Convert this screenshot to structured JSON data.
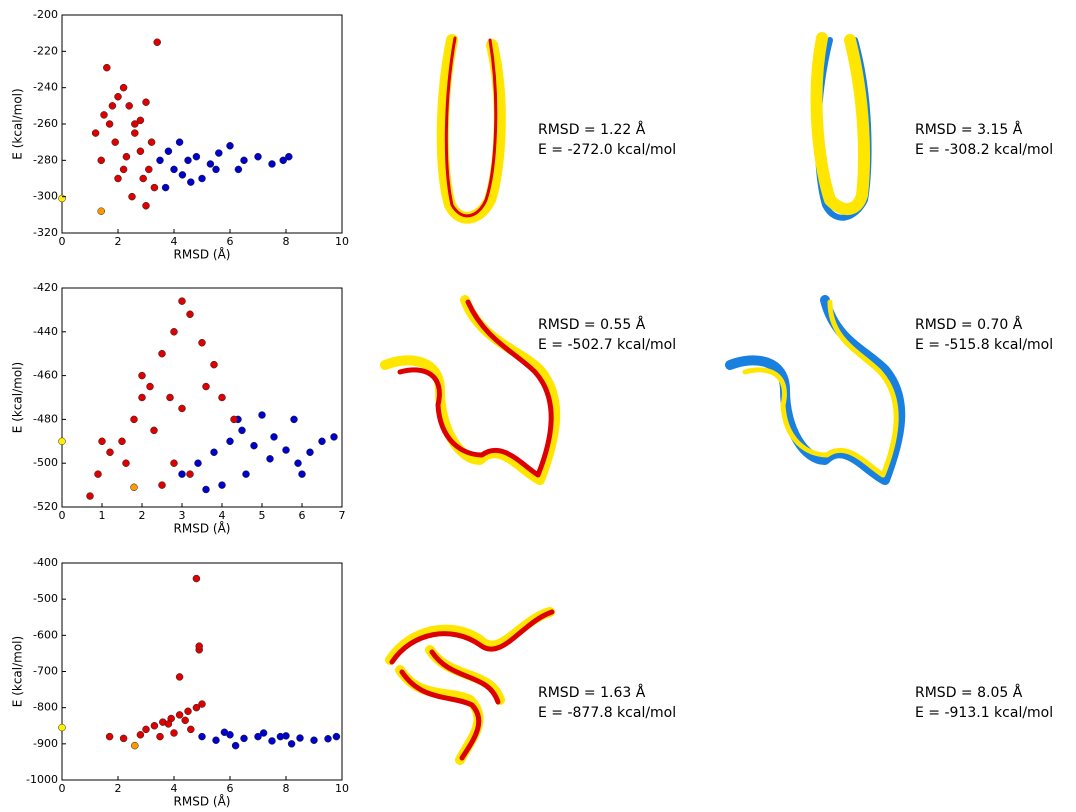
{
  "chart_data": [
    {
      "type": "scatter",
      "xlabel": "RMSD (Å)",
      "ylabel": "E (kcal/mol)",
      "xlim": [
        0,
        10
      ],
      "ylim": [
        -320,
        -200
      ],
      "xticks": [
        0,
        2,
        4,
        6,
        8,
        10
      ],
      "yticks": [
        -320,
        -300,
        -280,
        -260,
        -240,
        -220,
        -200
      ],
      "series": [
        {
          "color": "#0000cc",
          "x": [
            3.5,
            3.8,
            4.0,
            4.2,
            4.5,
            4.8,
            5.0,
            5.3,
            5.6,
            6.0,
            6.3,
            6.5,
            7.0,
            7.5,
            7.9,
            8.1,
            3.7,
            4.3,
            5.5,
            4.6
          ],
          "values": [
            -280,
            -275,
            -285,
            -270,
            -280,
            -278,
            -290,
            -282,
            -276,
            -272,
            -285,
            -280,
            -278,
            -282,
            -280,
            -278,
            -295,
            -288,
            -285,
            -292
          ]
        },
        {
          "color": "#dd0000",
          "x": [
            1.2,
            1.5,
            1.8,
            2.0,
            2.2,
            2.4,
            2.6,
            2.8,
            3.0,
            3.2,
            1.6,
            3.4,
            2.0,
            2.5,
            3.0,
            1.4,
            2.2,
            2.8,
            3.3,
            1.9,
            2.6,
            3.1,
            1.7,
            2.3,
            2.9
          ],
          "values": [
            -265,
            -255,
            -250,
            -245,
            -240,
            -250,
            -260,
            -258,
            -248,
            -270,
            -229,
            -215,
            -290,
            -300,
            -305,
            -280,
            -285,
            -275,
            -295,
            -270,
            -265,
            -285,
            -260,
            -278,
            -290
          ]
        },
        {
          "color": "#ffee00",
          "x": [
            0
          ],
          "values": [
            -301
          ]
        },
        {
          "color": "#ff9900",
          "x": [
            1.4
          ],
          "values": [
            -308
          ]
        }
      ]
    },
    {
      "type": "scatter",
      "xlabel": "RMSD (Å)",
      "ylabel": "E (kcal/mol)",
      "xlim": [
        0,
        7
      ],
      "ylim": [
        -520,
        -420
      ],
      "xticks": [
        0,
        1,
        2,
        3,
        4,
        5,
        6,
        7
      ],
      "yticks": [
        -520,
        -500,
        -480,
        -460,
        -440,
        -420
      ],
      "series": [
        {
          "color": "#0000cc",
          "x": [
            3.0,
            3.4,
            3.8,
            4.2,
            4.5,
            4.8,
            5.0,
            5.3,
            5.6,
            5.9,
            6.2,
            6.5,
            6.8,
            4.0,
            4.6,
            5.2,
            3.6,
            4.4,
            5.8,
            6.0
          ],
          "values": [
            -505,
            -500,
            -495,
            -490,
            -485,
            -492,
            -478,
            -488,
            -494,
            -500,
            -495,
            -490,
            -488,
            -510,
            -505,
            -498,
            -512,
            -480,
            -480,
            -505
          ]
        },
        {
          "color": "#dd0000",
          "x": [
            0.7,
            0.9,
            1.2,
            1.5,
            1.8,
            2.0,
            2.2,
            2.5,
            2.8,
            3.0,
            3.2,
            3.5,
            3.8,
            4.0,
            4.3,
            2.8,
            3.2,
            2.5,
            1.0,
            1.6,
            2.3,
            3.0,
            3.6,
            2.0,
            2.7
          ],
          "values": [
            -515,
            -505,
            -495,
            -490,
            -480,
            -470,
            -465,
            -450,
            -440,
            -426,
            -432,
            -445,
            -455,
            -470,
            -480,
            -500,
            -505,
            -510,
            -490,
            -500,
            -485,
            -475,
            -465,
            -460,
            -470
          ]
        },
        {
          "color": "#ffee00",
          "x": [
            0
          ],
          "values": [
            -490
          ]
        },
        {
          "color": "#ff9900",
          "x": [
            1.8
          ],
          "values": [
            -511
          ]
        }
      ]
    },
    {
      "type": "scatter",
      "xlabel": "RMSD (Å)",
      "ylabel": "E (kcal/mol)",
      "xlim": [
        0,
        10
      ],
      "ylim": [
        -1000,
        -400
      ],
      "xticks": [
        0,
        2,
        4,
        6,
        8,
        10
      ],
      "yticks": [
        -1000,
        -900,
        -800,
        -700,
        -600,
        -500,
        -400
      ],
      "series": [
        {
          "color": "#0000cc",
          "x": [
            5.0,
            5.5,
            6.0,
            6.5,
            7.0,
            7.5,
            8.0,
            8.5,
            9.0,
            9.5,
            9.8,
            6.2,
            7.2,
            8.2,
            5.8,
            7.8
          ],
          "values": [
            -880,
            -890,
            -875,
            -885,
            -880,
            -892,
            -878,
            -884,
            -890,
            -886,
            -880,
            -905,
            -870,
            -900,
            -868,
            -880
          ]
        },
        {
          "color": "#dd0000",
          "x": [
            1.7,
            2.2,
            2.8,
            3.0,
            3.3,
            3.6,
            3.9,
            4.2,
            4.5,
            4.8,
            5.0,
            4.8,
            4.9,
            4.9,
            4.2,
            3.5,
            4.0,
            4.6,
            3.8,
            4.4
          ],
          "values": [
            -880,
            -885,
            -875,
            -860,
            -850,
            -840,
            -830,
            -820,
            -810,
            -800,
            -790,
            -443,
            -640,
            -630,
            -715,
            -880,
            -870,
            -860,
            -845,
            -835
          ]
        },
        {
          "color": "#ffee00",
          "x": [
            0
          ],
          "values": [
            -855
          ]
        },
        {
          "color": "#ff9900",
          "x": [
            2.6
          ],
          "values": [
            -905
          ]
        }
      ]
    }
  ],
  "structures": [
    {
      "left": {
        "rmsd": "RMSD = 1.22 Å",
        "energy": "E = -272.0 kcal/mol"
      },
      "right": {
        "rmsd": "RMSD = 3.15 Å",
        "energy": "E = -308.2 kcal/mol"
      }
    },
    {
      "left": {
        "rmsd": "RMSD = 0.55 Å",
        "energy": "E = -502.7 kcal/mol"
      },
      "right": {
        "rmsd": "RMSD = 0.70 Å",
        "energy": "E = -515.8 kcal/mol"
      }
    },
    {
      "left": {
        "rmsd": "RMSD = 1.63 Å",
        "energy": "E = -877.8 kcal/mol"
      },
      "right": {
        "rmsd": "RMSD = 8.05 Å",
        "energy": "E = -913.1 kcal/mol"
      }
    }
  ]
}
